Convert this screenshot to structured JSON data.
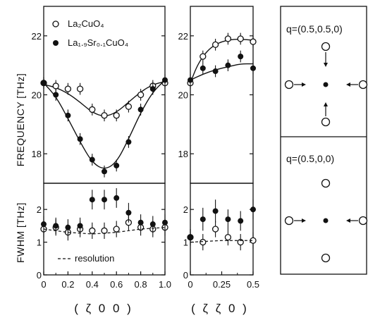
{
  "chart_data": [
    {
      "type": "scatter",
      "panel": "frequency-zeta00",
      "ylabel": "FREQUENCY [THz]",
      "xlim": [
        0,
        1.0
      ],
      "ylim": [
        17,
        23
      ],
      "yticks": [
        "18",
        "20",
        "22"
      ],
      "ytick_values": [
        18,
        20,
        22
      ],
      "legend": [
        {
          "label": "La₂CuO₄",
          "marker": "open-circle"
        },
        {
          "label": "La₁.₉Sr₀.₁CuO₄",
          "marker": "filled-circle"
        }
      ],
      "series": [
        {
          "name": "La2CuO4",
          "marker": "open",
          "x": [
            0,
            0.1,
            0.2,
            0.3,
            0.4,
            0.5,
            0.6,
            0.7,
            0.8,
            0.9,
            1.0
          ],
          "y": [
            20.4,
            20.3,
            20.2,
            20.2,
            19.5,
            19.3,
            19.3,
            19.6,
            20.0,
            20.3,
            20.4
          ],
          "err": [
            0.2,
            0.2,
            0.2,
            0.2,
            0.2,
            0.2,
            0.2,
            0.2,
            0.2,
            0.2,
            0.2
          ],
          "fit_x": [
            0,
            0.1,
            0.2,
            0.3,
            0.4,
            0.5,
            0.6,
            0.7,
            0.8,
            0.9,
            1.0
          ],
          "fit_y": [
            20.35,
            20.25,
            20.05,
            19.75,
            19.4,
            19.25,
            19.4,
            19.75,
            20.1,
            20.35,
            20.45
          ]
        },
        {
          "name": "La1.9Sr0.1CuO4",
          "marker": "filled",
          "x": [
            0,
            0.1,
            0.2,
            0.3,
            0.4,
            0.5,
            0.6,
            0.7,
            0.8,
            0.9,
            1.0
          ],
          "y": [
            20.4,
            20.0,
            19.3,
            18.5,
            17.8,
            17.4,
            17.6,
            18.4,
            19.5,
            20.2,
            20.5
          ],
          "err": [
            0.2,
            0.2,
            0.2,
            0.2,
            0.2,
            0.2,
            0.2,
            0.2,
            0.2,
            0.2,
            0.2
          ],
          "fit_x": [
            0,
            0.1,
            0.2,
            0.3,
            0.4,
            0.5,
            0.6,
            0.7,
            0.8,
            0.9,
            1.0
          ],
          "fit_y": [
            20.4,
            19.95,
            19.2,
            18.4,
            17.7,
            17.45,
            17.7,
            18.5,
            19.4,
            20.1,
            20.5
          ]
        }
      ]
    },
    {
      "type": "scatter",
      "panel": "frequency-zetazeta0",
      "xlim": [
        0,
        0.5
      ],
      "ylim": [
        17,
        23
      ],
      "yticks": [
        "18",
        "20",
        "22"
      ],
      "ytick_values": [
        18,
        20,
        22
      ],
      "series": [
        {
          "name": "La2CuO4",
          "marker": "open",
          "x": [
            0,
            0.1,
            0.2,
            0.3,
            0.4,
            0.5
          ],
          "y": [
            20.4,
            21.3,
            21.7,
            21.9,
            21.9,
            21.8
          ],
          "err": [
            0.2,
            0.2,
            0.2,
            0.2,
            0.2,
            0.2
          ],
          "fit_x": [
            0,
            0.05,
            0.1,
            0.15,
            0.2,
            0.25,
            0.3,
            0.35,
            0.4,
            0.45,
            0.5
          ],
          "fit_y": [
            20.4,
            20.95,
            21.3,
            21.55,
            21.7,
            21.8,
            21.85,
            21.88,
            21.88,
            21.87,
            21.85
          ]
        },
        {
          "name": "La1.9Sr0.1CuO4",
          "marker": "filled",
          "x": [
            0,
            0.1,
            0.2,
            0.3,
            0.4,
            0.5
          ],
          "y": [
            20.5,
            20.9,
            20.8,
            21.0,
            21.3,
            20.9
          ],
          "err": [
            0.2,
            0.2,
            0.2,
            0.2,
            0.2,
            0.2
          ],
          "fit_x": [
            0,
            0.1,
            0.2,
            0.3,
            0.4,
            0.5
          ],
          "fit_y": [
            20.5,
            20.7,
            20.85,
            20.95,
            21.05,
            21.05
          ]
        }
      ]
    },
    {
      "type": "scatter",
      "panel": "fwhm-zeta00",
      "ylabel": "FWHM [THz]",
      "xlabel": "( ζ 0 0 )",
      "xlim": [
        0,
        1.0
      ],
      "ylim": [
        0,
        2.8
      ],
      "xticks": [
        "0",
        "0.2",
        "0.4",
        "0.6",
        "0.8",
        "1.0"
      ],
      "xtick_values": [
        0,
        0.2,
        0.4,
        0.6,
        0.8,
        1.0
      ],
      "yticks": [
        "0",
        "1",
        "2"
      ],
      "ytick_values": [
        0,
        1,
        2
      ],
      "annotation": "resolution",
      "series": [
        {
          "name": "La2CuO4",
          "marker": "open",
          "x": [
            0,
            0.1,
            0.2,
            0.3,
            0.4,
            0.5,
            0.6,
            0.7,
            0.8,
            0.9,
            1.0
          ],
          "y": [
            1.4,
            1.45,
            1.3,
            1.4,
            1.35,
            1.35,
            1.4,
            1.6,
            1.45,
            1.4,
            1.45
          ],
          "err": [
            0.25,
            0.25,
            0.25,
            0.25,
            0.25,
            0.25,
            0.25,
            0.25,
            0.25,
            0.25,
            0.25
          ]
        },
        {
          "name": "La1.9Sr0.1CuO4",
          "marker": "filled",
          "x": [
            0,
            0.1,
            0.2,
            0.3,
            0.4,
            0.5,
            0.6,
            0.7,
            0.8,
            0.9,
            1.0
          ],
          "y": [
            1.55,
            1.5,
            1.45,
            1.5,
            2.3,
            2.3,
            2.35,
            1.9,
            1.6,
            1.55,
            1.6
          ],
          "err": [
            0.25,
            0.25,
            0.25,
            0.25,
            0.3,
            0.3,
            0.3,
            0.3,
            0.25,
            0.25,
            0.25
          ]
        },
        {
          "name": "resolution",
          "style": "dashed",
          "x": [
            0,
            0.2,
            0.4,
            0.6,
            0.8,
            1.0
          ],
          "y": [
            1.4,
            1.3,
            1.25,
            1.3,
            1.4,
            1.45
          ]
        }
      ]
    },
    {
      "type": "scatter",
      "panel": "fwhm-zetazeta0",
      "xlabel": "( ζ ζ 0 )",
      "xlim": [
        0,
        0.5
      ],
      "ylim": [
        0,
        2.8
      ],
      "xticks": [
        "0",
        "0.25",
        "0.5"
      ],
      "xtick_values": [
        0,
        0.25,
        0.5
      ],
      "yticks": [
        "0",
        "1",
        "2"
      ],
      "ytick_values": [
        0,
        1,
        2
      ],
      "series": [
        {
          "name": "La2CuO4",
          "marker": "open",
          "x": [
            0,
            0.1,
            0.2,
            0.3,
            0.4,
            0.5
          ],
          "y": [
            1.15,
            1.0,
            1.4,
            1.15,
            1.0,
            1.05
          ],
          "err": [
            0.25,
            0.25,
            0.25,
            0.25,
            0.25,
            0.25
          ]
        },
        {
          "name": "La1.9Sr0.1CuO4",
          "marker": "filled",
          "x": [
            0,
            0.1,
            0.2,
            0.3,
            0.4,
            0.5
          ],
          "y": [
            1.15,
            1.7,
            1.95,
            1.7,
            1.65,
            2.0
          ],
          "err": [
            0.25,
            0.35,
            0.35,
            0.3,
            0.3,
            0.3
          ]
        },
        {
          "name": "resolution",
          "style": "dashed",
          "x": [
            0,
            0.25,
            0.5
          ],
          "y": [
            1.0,
            1.05,
            1.05
          ]
        }
      ]
    }
  ],
  "diagram": {
    "upper_label": "q=(0.5,0.5,0)",
    "lower_label": "q=(0.5,0,0)"
  }
}
